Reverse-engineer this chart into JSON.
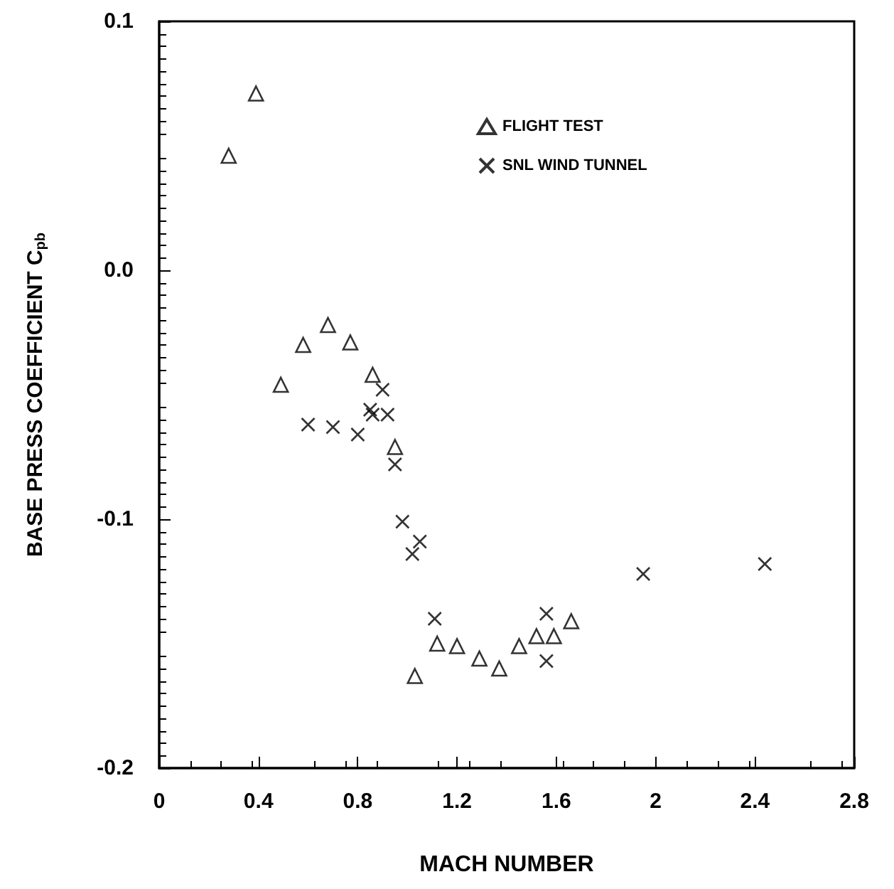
{
  "chart_data": {
    "type": "scatter",
    "xlabel": "MACH NUMBER",
    "ylabel": "BASE PRESS COEFFICIENT C$_{pb}$",
    "xlim": [
      0,
      2.8
    ],
    "xticks": [
      0,
      0.4,
      0.8,
      1.2,
      1.6,
      2,
      2.4,
      2.8
    ],
    "ylim": [
      -0.2,
      0.1
    ],
    "yticks": [
      -0.2,
      -0.1,
      {
        "value": 0,
        "label": "0.0"
      },
      0.1
    ],
    "grid": false,
    "legend": "top right",
    "series": [
      {
        "name": "FLIGHT TEST",
        "color": "#000000",
        "marker": "triangle",
        "x": [
          0.28,
          0.39,
          0.49,
          0.58,
          0.68,
          0.77,
          0.86,
          0.95,
          1.03,
          1.12,
          1.2,
          1.29,
          1.37,
          1.45,
          1.52,
          1.59,
          1.66
        ],
        "values": [
          0.046,
          0.071,
          -0.046,
          -0.03,
          -0.022,
          -0.029,
          -0.042,
          -0.071,
          -0.163,
          -0.15,
          -0.151,
          -0.156,
          -0.16,
          -0.151,
          -0.147,
          -0.147,
          -0.141
        ]
      },
      {
        "name": "SNL WIND TUNNEL",
        "color": "#000000",
        "marker": "cross",
        "x": [
          0.6,
          0.7,
          0.8,
          0.85,
          0.86,
          0.9,
          0.92,
          0.95,
          0.98,
          1.05,
          1.02,
          1.11,
          1.56,
          1.56,
          1.95,
          2.44
        ],
        "values": [
          -0.062,
          -0.063,
          -0.066,
          -0.056,
          -0.058,
          -0.048,
          -0.058,
          -0.078,
          -0.101,
          -0.109,
          -0.114,
          -0.14,
          -0.138,
          -0.157,
          -0.122,
          -0.118
        ]
      }
    ]
  }
}
